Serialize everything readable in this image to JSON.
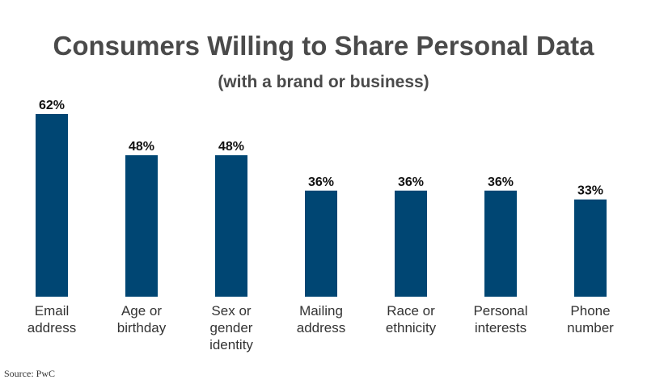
{
  "chart_data": {
    "type": "bar",
    "title": "Consumers Willing to Share Personal Data",
    "subtitle": "(with a brand or business)",
    "categories": [
      [
        "Email",
        "address"
      ],
      [
        "Age or",
        "birthday"
      ],
      [
        "Sex or",
        "gender",
        "identity"
      ],
      [
        "Mailing",
        "address"
      ],
      [
        "Race or",
        "ethnicity"
      ],
      [
        "Personal",
        "interests"
      ],
      [
        "Phone",
        "number"
      ]
    ],
    "values": [
      62,
      48,
      48,
      36,
      36,
      36,
      33
    ],
    "value_labels": [
      "62%",
      "48%",
      "48%",
      "36%",
      "36%",
      "36%",
      "33%"
    ],
    "ylim": [
      0,
      62
    ],
    "grid": false,
    "legend": "none",
    "bar_color": "#004673",
    "source": "Source: PwC"
  }
}
